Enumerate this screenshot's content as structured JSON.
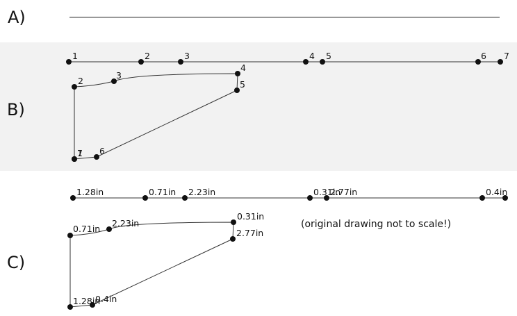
{
  "sections": [
    {
      "id": "a",
      "label": "A)"
    },
    {
      "id": "b",
      "label": "B)"
    },
    {
      "id": "c",
      "label": "C)"
    }
  ],
  "colors": {
    "band_b": "#f2f2f2",
    "ink": "#111111",
    "line": "#333333"
  },
  "section_b": {
    "straight_labels": [
      "1",
      "2",
      "3",
      "4",
      "5",
      "6",
      "7"
    ],
    "shape_labels": [
      "1",
      "2",
      "3",
      "4",
      "5",
      "6",
      "7"
    ]
  },
  "section_c": {
    "straight_labels": [
      "1.28in",
      "0.71in",
      "2.23in",
      "0.31in",
      "2.77in",
      "",
      "0.4in"
    ],
    "shape_labels": [
      "1.28in",
      "0.71in",
      "2.23in",
      "0.31in",
      "2.77in",
      "0.4in"
    ],
    "note": "(original drawing not to scale!)"
  }
}
